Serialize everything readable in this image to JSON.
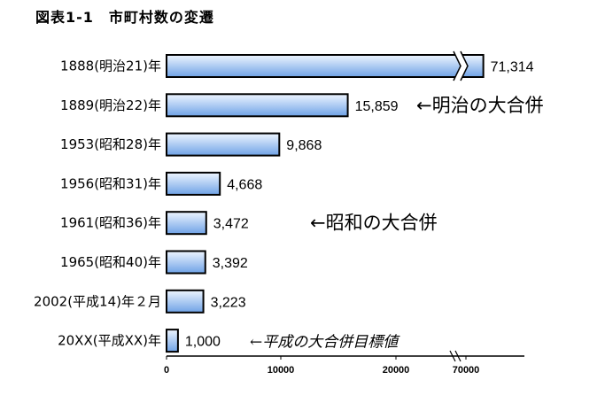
{
  "title": "図表1-1　市町村数の変遷",
  "chart_data": {
    "type": "bar",
    "orientation": "horizontal",
    "categories": [
      "1888(明治21)年",
      "1889(明治22)年",
      "1953(昭和28)年",
      "1956(昭和31)年",
      "1961(昭和36)年",
      "1965(昭和40)年",
      "2002(平成14)年２月",
      "20XX(平成XX)年"
    ],
    "values": [
      71314,
      15859,
      9868,
      4668,
      3472,
      3392,
      3223,
      1000
    ],
    "value_labels": [
      "71,314",
      "15,859",
      "9,868",
      "4,668",
      "3,472",
      "3,392",
      "3,223",
      "1,000"
    ],
    "xticks": [
      "0",
      "10000",
      "20000",
      "70000"
    ],
    "axis_break": true,
    "annotations": [
      {
        "category_index": 1,
        "text": "←明治の大合併"
      },
      {
        "category_index": 4,
        "text": "←昭和の大合併"
      },
      {
        "category_index": 7,
        "text": "←平成の大合併目標値"
      }
    ],
    "xlabel": "",
    "ylabel": "",
    "grid": false,
    "colors": {
      "bar_light": "#eef5ff",
      "bar_dark": "#6fa2e6",
      "bar_border": "#000000"
    }
  }
}
